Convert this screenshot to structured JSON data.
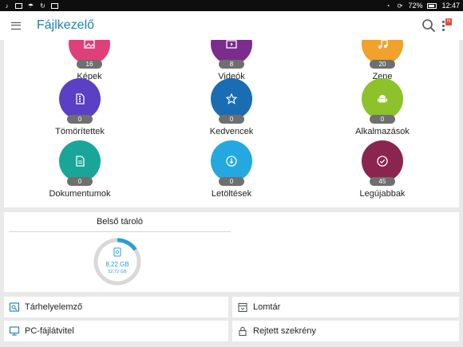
{
  "status_bar": {
    "battery": "72%",
    "time": "12:47"
  },
  "app_bar": {
    "title": "Fájlkezelő",
    "more_badge": "N"
  },
  "categories": [
    {
      "id": "kepek",
      "label": "Képek",
      "count": "16",
      "color": "#e0407a",
      "icon": "image-icon"
    },
    {
      "id": "videok",
      "label": "Videók",
      "count": "8",
      "color": "#7b2c8c",
      "icon": "video-icon"
    },
    {
      "id": "zene",
      "label": "Zene",
      "count": "20",
      "color": "#f2a12a",
      "icon": "music-icon"
    },
    {
      "id": "tomoritettek",
      "label": "Tömörítettek",
      "count": "0",
      "color": "#5b3fc4",
      "icon": "archive-icon"
    },
    {
      "id": "kedvencek",
      "label": "Kedvencek",
      "count": "0",
      "color": "#1a6db3",
      "icon": "star-icon"
    },
    {
      "id": "alkalmazasok",
      "label": "Alkalmazások",
      "count": "0",
      "color": "#8dc22a",
      "icon": "android-icon"
    },
    {
      "id": "dokumentumok",
      "label": "Dokumentumok",
      "count": "0",
      "color": "#1aa59a",
      "icon": "document-icon"
    },
    {
      "id": "letoltesek",
      "label": "Letöltések",
      "count": "0",
      "color": "#24a8e0",
      "icon": "download-icon"
    },
    {
      "id": "legujabbak",
      "label": "Legújabbak",
      "count": "45",
      "color": "#8a2550",
      "icon": "check-icon"
    }
  ],
  "storage": {
    "title": "Belső tároló",
    "used": "8,22 GB",
    "total": "52,72 GB",
    "used_fraction": 0.156,
    "ring_color": "#2a9fd6",
    "ring_bg": "#d9d9d9"
  },
  "tools": {
    "analyzer": "Tárhelyelemző",
    "recycle": "Lomtár",
    "pc_transfer": "PC-fájlátvitel",
    "hidden_cabinet": "Rejtett szekrény"
  }
}
